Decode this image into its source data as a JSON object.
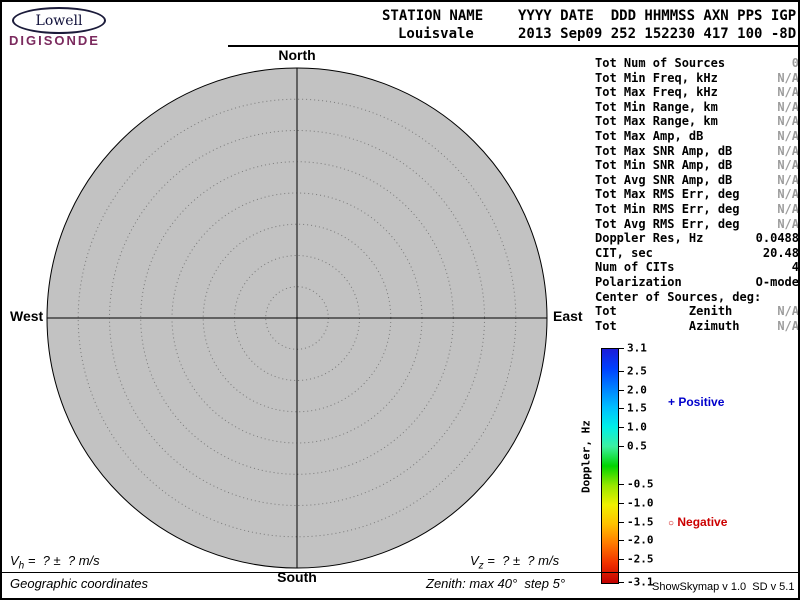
{
  "logo": {
    "name": "Lowell",
    "brand": "DIGISONDE"
  },
  "header": {
    "station_label": "STATION NAME",
    "station_value": "Louisvale",
    "date_label": "YYYY DATE  DDD HHMMSS AXN PPS IGP",
    "date_value": "2013 Sep09 252 152230 417 100 -8D"
  },
  "compass": {
    "north": "North",
    "south": "South",
    "east": "East",
    "west": "West"
  },
  "stats": {
    "rows": [
      {
        "label": "Tot Num of Sources",
        "value": "0",
        "muted": true
      },
      {
        "label": "Tot Min Freq, kHz",
        "value": "N/A",
        "muted": true
      },
      {
        "label": "Tot Max Freq, kHz",
        "value": "N/A",
        "muted": true
      },
      {
        "label": "Tot Min Range, km",
        "value": "N/A",
        "muted": true
      },
      {
        "label": "Tot Max Range, km",
        "value": "N/A",
        "muted": true
      },
      {
        "label": "Tot Max Amp, dB",
        "value": "N/A",
        "muted": true
      },
      {
        "label": "Tot Max SNR Amp, dB",
        "value": "N/A",
        "muted": true
      },
      {
        "label": "Tot Min SNR Amp, dB",
        "value": "N/A",
        "muted": true
      },
      {
        "label": "Tot Avg SNR Amp, dB",
        "value": "N/A",
        "muted": true
      },
      {
        "label": "Tot Max RMS Err, deg",
        "value": "N/A",
        "muted": true
      },
      {
        "label": "Tot Min RMS Err, deg",
        "value": "N/A",
        "muted": true
      },
      {
        "label": "Tot Avg RMS Err, deg",
        "value": "N/A",
        "muted": true
      },
      {
        "label": "Doppler Res, Hz",
        "value": "0.0488",
        "muted": false
      },
      {
        "label": "CIT, sec",
        "value": "20.48",
        "muted": false
      },
      {
        "label": "Num of CITs",
        "value": "4",
        "muted": false
      },
      {
        "label": "Polarization",
        "value": "O-mode",
        "muted": false
      },
      {
        "label": "Center of Sources, deg:",
        "value": "",
        "muted": false
      },
      {
        "label": "Tot          Zenith",
        "value": "N/A",
        "muted": true
      },
      {
        "label": "Tot          Azimuth",
        "value": "N/A",
        "muted": true
      }
    ]
  },
  "colorbar": {
    "title": "Doppler, Hz",
    "max": 3.1,
    "min": -3.1,
    "ticks": [
      3.1,
      2.5,
      2.0,
      1.5,
      1.0,
      0.5,
      -0.5,
      -1.0,
      -1.5,
      -2.0,
      -2.5,
      -3.1
    ],
    "tick_labels": [
      "3.1",
      "2.5",
      "2.0",
      "1.5",
      "1.0",
      "0.5",
      "-0.5",
      "-1.0",
      "-1.5",
      "-2.0",
      "-2.5",
      "-3.1"
    ],
    "gradient": [
      "#1c1cd8",
      "#0040ff",
      "#0080ff",
      "#00bfff",
      "#00f0e8",
      "#3cf0a0",
      "#00d400",
      "#98e800",
      "#f0f000",
      "#ffc000",
      "#ff7800",
      "#f03000",
      "#c00000"
    ]
  },
  "legend": {
    "positive_marker": "+",
    "positive_label": " Positive",
    "positive_color": "#0000cc",
    "negative_marker": "○",
    "negative_label": " Negative",
    "negative_color": "#cc0000"
  },
  "footer": {
    "vh_base": "V",
    "vh_sub": "h",
    "vh_rest": " =  ? ±  ? m/s",
    "vz_base": "V",
    "vz_sub": "z",
    "vz_rest": " =  ? ±  ? m/s",
    "coordinates_label": "Geographic coordinates",
    "zenith_label": "Zenith: max 40°  step 5°",
    "version_label": "ShowSkymap v 1.0  SD v 5.1"
  },
  "chart_data": {
    "type": "scatter",
    "title": "Digisonde skymap: Doppler sources in polar zenith/azimuth view",
    "zenith_max_deg": 40,
    "zenith_step_deg": 5,
    "zenith_rings_deg": [
      5,
      10,
      15,
      20,
      25,
      30,
      35,
      40
    ],
    "sources": [],
    "num_sources": 0,
    "colorbar_label": "Doppler, Hz",
    "colorbar_range": [
      -3.1,
      3.1
    ]
  }
}
